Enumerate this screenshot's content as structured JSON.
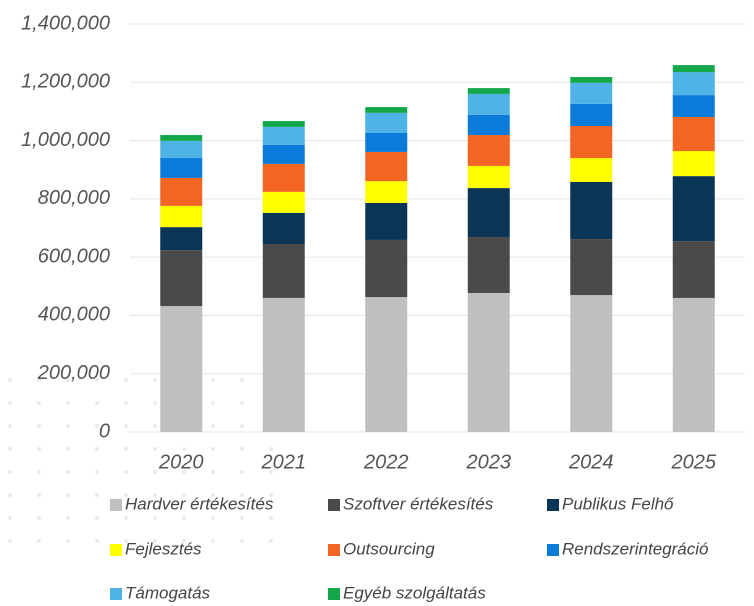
{
  "chart_data": {
    "type": "stacked_bar",
    "categories": [
      "2020",
      "2021",
      "2022",
      "2023",
      "2024",
      "2025"
    ],
    "series": [
      {
        "name": "Hardver értékesítés",
        "color": "#bfbfbf",
        "values": [
          432000,
          460000,
          463000,
          477000,
          470000,
          460000
        ]
      },
      {
        "name": "Szoftver értékesítés",
        "color": "#4a4a4a",
        "values": [
          192000,
          185000,
          196000,
          192000,
          192000,
          195000
        ]
      },
      {
        "name": "Publikus Felhő",
        "color": "#0b3557",
        "values": [
          79000,
          107000,
          127000,
          168000,
          196000,
          223000
        ]
      },
      {
        "name": "Fejlesztés",
        "color": "#ffff00",
        "values": [
          73000,
          72000,
          75000,
          76000,
          82000,
          86000
        ]
      },
      {
        "name": "Outsourcing",
        "color": "#f26522",
        "values": [
          96000,
          96000,
          100000,
          106000,
          110000,
          117000
        ]
      },
      {
        "name": "Rendszerintegráció",
        "color": "#0a7bd8",
        "values": [
          68000,
          65000,
          65000,
          69000,
          76000,
          75000
        ]
      },
      {
        "name": "Támogatás",
        "color": "#4fb3e6",
        "values": [
          59000,
          62000,
          69000,
          72000,
          72000,
          79000
        ]
      },
      {
        "name": "Egyéb szolgáltatás",
        "color": "#12a84a",
        "values": [
          20000,
          20000,
          20000,
          20000,
          20000,
          24000
        ]
      }
    ],
    "ylim": [
      0,
      1400000
    ],
    "yticks": [
      0,
      {
        "value": 200000,
        "label": "200,000"
      },
      {
        "value": 400000,
        "label": "400,000"
      },
      {
        "value": 600000,
        "label": "600,000"
      },
      {
        "value": 800000,
        "label": "800,000"
      },
      {
        "value": 1000000,
        "label": "1,000,000"
      },
      {
        "value": 1200000,
        "label": "1,200,000"
      },
      {
        "value": 1400000,
        "label": "1,400,000"
      }
    ],
    "grid": true
  }
}
